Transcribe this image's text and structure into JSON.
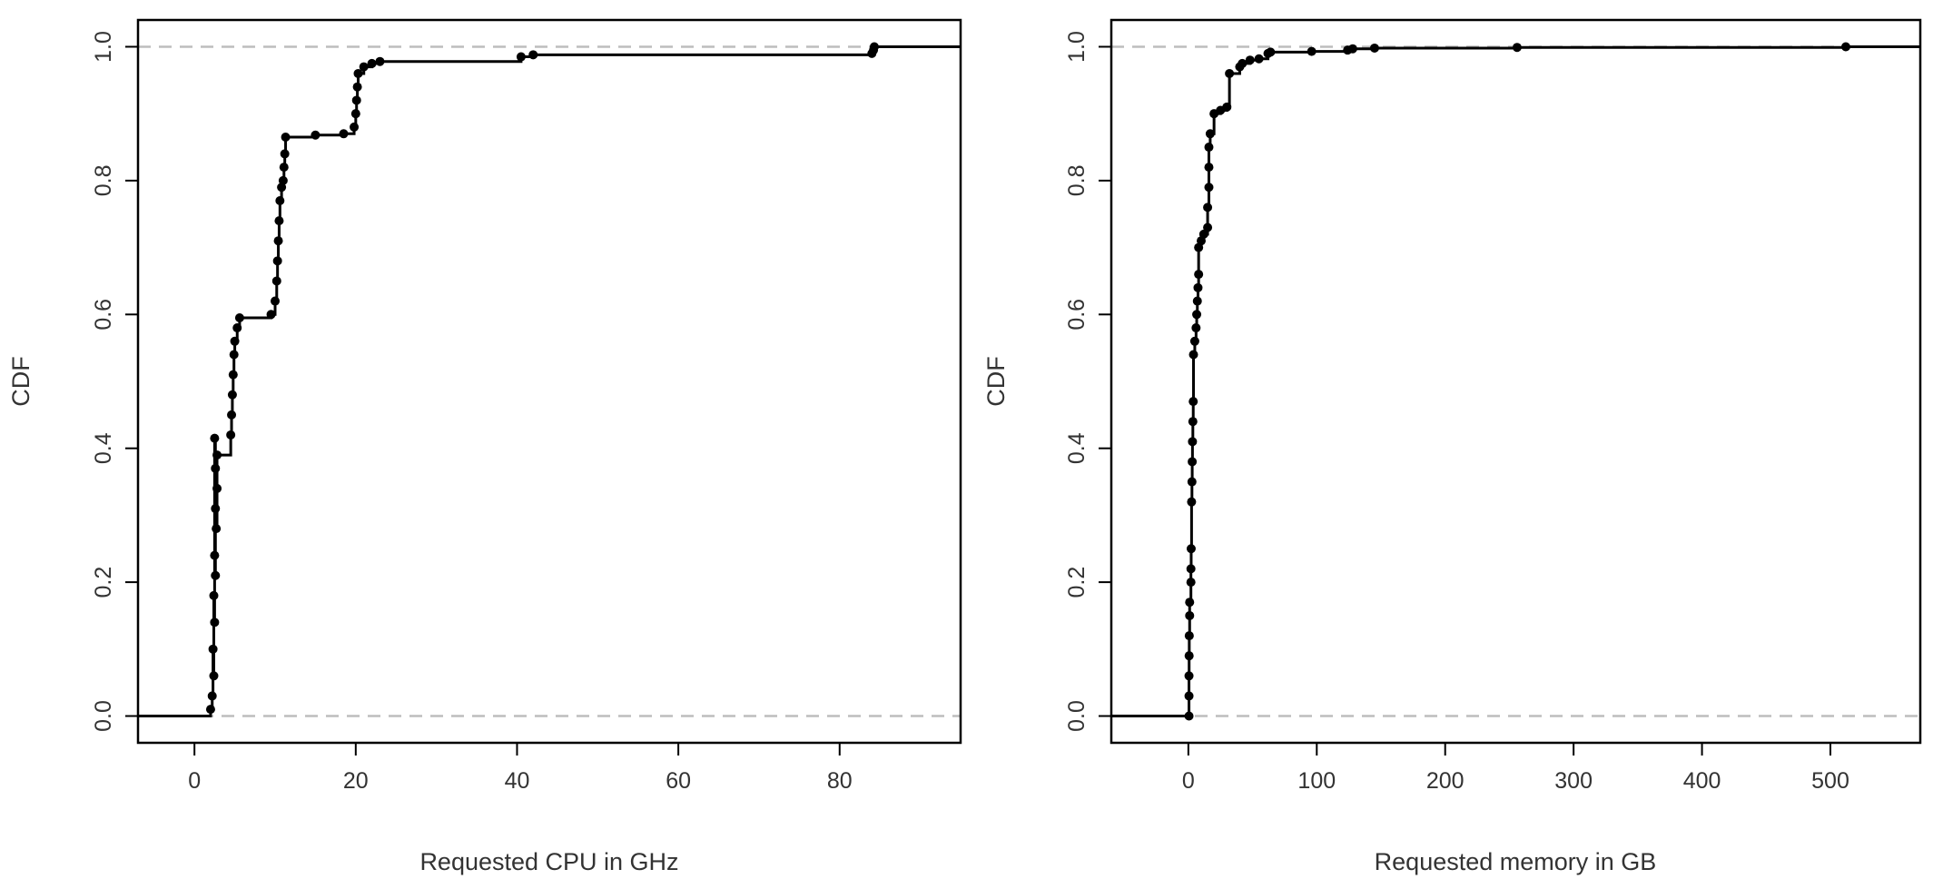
{
  "chart_data": [
    {
      "type": "scatter",
      "subtype": "ecdf-step",
      "xlabel": "Requested CPU in GHz",
      "ylabel": "CDF",
      "xlim": [
        -7,
        95
      ],
      "ylim": [
        -0.04,
        1.04
      ],
      "xticks": [
        0,
        20,
        40,
        60,
        80
      ],
      "yticks": [
        0.0,
        0.2,
        0.4,
        0.6,
        0.8,
        1.0
      ],
      "reference_lines_y": [
        0.0,
        1.0
      ],
      "grid": false,
      "series": [
        {
          "points": [
            [
              2.0,
              0.01
            ],
            [
              2.2,
              0.03
            ],
            [
              2.4,
              0.06
            ],
            [
              2.3,
              0.1
            ],
            [
              2.5,
              0.14
            ],
            [
              2.4,
              0.18
            ],
            [
              2.6,
              0.21
            ],
            [
              2.5,
              0.24
            ],
            [
              2.7,
              0.28
            ],
            [
              2.6,
              0.31
            ],
            [
              2.8,
              0.34
            ],
            [
              2.6,
              0.37
            ],
            [
              2.8,
              0.39
            ],
            [
              2.5,
              0.415
            ],
            [
              4.5,
              0.42
            ],
            [
              4.6,
              0.45
            ],
            [
              4.7,
              0.48
            ],
            [
              4.8,
              0.51
            ],
            [
              4.9,
              0.54
            ],
            [
              5.0,
              0.56
            ],
            [
              5.3,
              0.58
            ],
            [
              5.6,
              0.595
            ],
            [
              9.5,
              0.6
            ],
            [
              10.0,
              0.62
            ],
            [
              10.2,
              0.65
            ],
            [
              10.3,
              0.68
            ],
            [
              10.4,
              0.71
            ],
            [
              10.5,
              0.74
            ],
            [
              10.6,
              0.77
            ],
            [
              10.8,
              0.79
            ],
            [
              11.0,
              0.8
            ],
            [
              11.1,
              0.82
            ],
            [
              11.2,
              0.84
            ],
            [
              11.3,
              0.865
            ],
            [
              15.0,
              0.868
            ],
            [
              18.5,
              0.87
            ],
            [
              19.8,
              0.88
            ],
            [
              20.0,
              0.9
            ],
            [
              20.1,
              0.92
            ],
            [
              20.2,
              0.94
            ],
            [
              20.3,
              0.96
            ],
            [
              21.0,
              0.97
            ],
            [
              22.0,
              0.975
            ],
            [
              23.0,
              0.978
            ],
            [
              40.5,
              0.985
            ],
            [
              42.0,
              0.988
            ],
            [
              84.0,
              0.99
            ],
            [
              84.2,
              0.995
            ],
            [
              84.3,
              1.0
            ]
          ]
        }
      ]
    },
    {
      "type": "scatter",
      "subtype": "ecdf-step",
      "xlabel": "Requested memory in GB",
      "ylabel": "CDF",
      "xlim": [
        -60,
        570
      ],
      "ylim": [
        -0.04,
        1.04
      ],
      "xticks": [
        0,
        100,
        200,
        300,
        400,
        500
      ],
      "yticks": [
        0.0,
        0.2,
        0.4,
        0.6,
        0.8,
        1.0
      ],
      "reference_lines_y": [
        0.0,
        1.0
      ],
      "grid": false,
      "series": [
        {
          "points": [
            [
              0.5,
              0.0
            ],
            [
              0.5,
              0.03
            ],
            [
              0.5,
              0.06
            ],
            [
              0.6,
              0.09
            ],
            [
              0.7,
              0.12
            ],
            [
              1.0,
              0.15
            ],
            [
              1.0,
              0.17
            ],
            [
              2.0,
              0.2
            ],
            [
              2.0,
              0.22
            ],
            [
              2.2,
              0.25
            ],
            [
              2.5,
              0.32
            ],
            [
              2.8,
              0.35
            ],
            [
              3.0,
              0.38
            ],
            [
              3.2,
              0.41
            ],
            [
              3.5,
              0.44
            ],
            [
              3.8,
              0.47
            ],
            [
              4.0,
              0.54
            ],
            [
              5.0,
              0.56
            ],
            [
              6.0,
              0.58
            ],
            [
              6.5,
              0.6
            ],
            [
              7.0,
              0.62
            ],
            [
              7.5,
              0.64
            ],
            [
              8.0,
              0.66
            ],
            [
              8.0,
              0.7
            ],
            [
              10.0,
              0.71
            ],
            [
              12.0,
              0.72
            ],
            [
              15.0,
              0.73
            ],
            [
              15.0,
              0.76
            ],
            [
              16.0,
              0.79
            ],
            [
              16.0,
              0.82
            ],
            [
              16.0,
              0.85
            ],
            [
              17.0,
              0.87
            ],
            [
              20.0,
              0.9
            ],
            [
              25.0,
              0.905
            ],
            [
              30.0,
              0.91
            ],
            [
              32.0,
              0.96
            ],
            [
              40.0,
              0.97
            ],
            [
              42.0,
              0.975
            ],
            [
              48.0,
              0.98
            ],
            [
              55.0,
              0.982
            ],
            [
              62.0,
              0.99
            ],
            [
              64.0,
              0.992
            ],
            [
              96.0,
              0.993
            ],
            [
              124.0,
              0.995
            ],
            [
              128.0,
              0.997
            ],
            [
              145.0,
              0.998
            ],
            [
              256.0,
              0.999
            ],
            [
              512.0,
              1.0
            ]
          ]
        }
      ]
    }
  ]
}
